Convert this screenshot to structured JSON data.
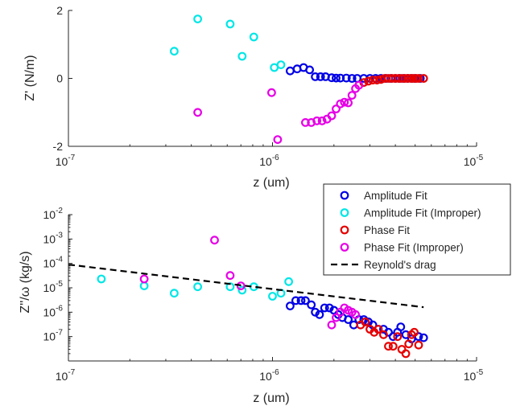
{
  "chart_data": [
    {
      "type": "scatter",
      "xscale": "log",
      "yscale": "linear",
      "xlim": [
        1e-07,
        1e-05
      ],
      "ylim": [
        -2,
        2
      ],
      "xlabel": "z (um)",
      "ylabel": "Z' (N/m)",
      "xticks": [
        {
          "value": 1e-07,
          "base": "10",
          "exp": "-7"
        },
        {
          "value": 1e-06,
          "base": "10",
          "exp": "-6"
        },
        {
          "value": 1e-05,
          "base": "10",
          "exp": "-5"
        }
      ],
      "yticks": [
        {
          "value": 2,
          "label": "2"
        },
        {
          "value": 0,
          "label": "0"
        },
        {
          "value": -2,
          "label": "-2"
        }
      ],
      "series": [
        {
          "name": "Amplitude Fit",
          "color": "#0000e6",
          "marker": "circle",
          "points": [
            [
              1.22e-06,
              0.22
            ],
            [
              1.32e-06,
              0.28
            ],
            [
              1.42e-06,
              0.32
            ],
            [
              1.52e-06,
              0.25
            ],
            [
              1.62e-06,
              0.05
            ],
            [
              1.72e-06,
              0.05
            ],
            [
              1.82e-06,
              0.05
            ],
            [
              1.95e-06,
              0.02
            ],
            [
              2.05e-06,
              0.01
            ],
            [
              2.15e-06,
              0.01
            ],
            [
              2.3e-06,
              0.01
            ],
            [
              2.45e-06,
              0.0
            ],
            [
              2.6e-06,
              0.0
            ],
            [
              2.8e-06,
              0.0
            ],
            [
              3e-06,
              0.0
            ],
            [
              3.2e-06,
              0.0
            ],
            [
              3.4e-06,
              0.0
            ],
            [
              3.6e-06,
              0.0
            ],
            [
              3.8e-06,
              0.0
            ],
            [
              4e-06,
              0.0
            ],
            [
              4.2e-06,
              0.0
            ],
            [
              4.4e-06,
              0.0
            ],
            [
              4.6e-06,
              0.0
            ],
            [
              4.8e-06,
              0.0
            ],
            [
              5e-06,
              0.0
            ],
            [
              5.3e-06,
              0.0
            ]
          ]
        },
        {
          "name": "Amplitude Fit (Improper)",
          "color": "#00e6e6",
          "marker": "circle",
          "points": [
            [
              3.3e-07,
              0.8
            ],
            [
              4.3e-07,
              1.75
            ],
            [
              6.2e-07,
              1.6
            ],
            [
              7.1e-07,
              0.65
            ],
            [
              8.1e-07,
              1.22
            ],
            [
              1.02e-06,
              0.32
            ],
            [
              1.1e-06,
              0.4
            ]
          ]
        },
        {
          "name": "Phase Fit",
          "color": "#e60000",
          "marker": "circle",
          "points": [
            [
              2.8e-06,
              -0.12
            ],
            [
              2.95e-06,
              -0.08
            ],
            [
              3.1e-06,
              -0.05
            ],
            [
              3.25e-06,
              -0.05
            ],
            [
              3.4e-06,
              -0.03
            ],
            [
              3.55e-06,
              0.0
            ],
            [
              3.7e-06,
              0.0
            ],
            [
              3.85e-06,
              0.0
            ],
            [
              4e-06,
              0.0
            ],
            [
              4.15e-06,
              0.0
            ],
            [
              4.3e-06,
              0.0
            ],
            [
              4.45e-06,
              0.0
            ],
            [
              4.6e-06,
              0.0
            ],
            [
              4.75e-06,
              0.0
            ],
            [
              4.9e-06,
              0.0
            ],
            [
              5.05e-06,
              0.0
            ],
            [
              5.2e-06,
              0.0
            ],
            [
              5.5e-06,
              0.0
            ]
          ]
        },
        {
          "name": "Phase Fit (Improper)",
          "color": "#e600e6",
          "marker": "circle",
          "points": [
            [
              4.3e-07,
              -1.0
            ],
            [
              9.9e-07,
              -0.42
            ],
            [
              1.06e-06,
              -1.8
            ],
            [
              1.45e-06,
              -1.3
            ],
            [
              1.55e-06,
              -1.3
            ],
            [
              1.65e-06,
              -1.25
            ],
            [
              1.75e-06,
              -1.25
            ],
            [
              1.85e-06,
              -1.2
            ],
            [
              1.95e-06,
              -1.1
            ],
            [
              2.05e-06,
              -0.9
            ],
            [
              2.15e-06,
              -0.75
            ],
            [
              2.25e-06,
              -0.7
            ],
            [
              2.35e-06,
              -0.72
            ],
            [
              2.45e-06,
              -0.5
            ],
            [
              2.55e-06,
              -0.3
            ],
            [
              2.65e-06,
              -0.2
            ]
          ]
        }
      ]
    },
    {
      "type": "scatter",
      "xscale": "log",
      "yscale": "log",
      "xlim": [
        1e-07,
        1e-05
      ],
      "ylim": [
        1e-08,
        0.01
      ],
      "xlabel": "z (um)",
      "ylabel": "Z''/ω (kg/s)",
      "xticks": [
        {
          "value": 1e-07,
          "base": "10",
          "exp": "-7"
        },
        {
          "value": 1e-06,
          "base": "10",
          "exp": "-6"
        },
        {
          "value": 1e-05,
          "base": "10",
          "exp": "-5"
        }
      ],
      "yticks": [
        {
          "value": 0.01,
          "base": "10",
          "exp": "-2"
        },
        {
          "value": 0.001,
          "base": "10",
          "exp": "-3"
        },
        {
          "value": 0.0001,
          "base": "10",
          "exp": "-4"
        },
        {
          "value": 1e-05,
          "base": "10",
          "exp": "-5"
        },
        {
          "value": 1e-06,
          "base": "10",
          "exp": "-6"
        },
        {
          "value": 1e-07,
          "base": "10",
          "exp": "-7"
        }
      ],
      "series": [
        {
          "name": "Amplitude Fit",
          "color": "#0000e6",
          "marker": "circle",
          "points": [
            [
              1.22e-06,
              1.8e-06
            ],
            [
              1.3e-06,
              3e-06
            ],
            [
              1.38e-06,
              3e-06
            ],
            [
              1.45e-06,
              3e-06
            ],
            [
              1.55e-06,
              2e-06
            ],
            [
              1.62e-06,
              1e-06
            ],
            [
              1.7e-06,
              8e-07
            ],
            [
              1.8e-06,
              1.5e-06
            ],
            [
              1.9e-06,
              1.5e-06
            ],
            [
              2e-06,
              1.2e-06
            ],
            [
              2.1e-06,
              8e-07
            ],
            [
              2.2e-06,
              6e-07
            ],
            [
              2.35e-06,
              5e-07
            ],
            [
              2.5e-06,
              3e-07
            ],
            [
              2.65e-06,
              5e-07
            ],
            [
              2.8e-06,
              5e-07
            ],
            [
              2.95e-06,
              4e-07
            ],
            [
              3.1e-06,
              3e-07
            ],
            [
              3.3e-06,
              2e-07
            ],
            [
              3.5e-06,
              2e-07
            ],
            [
              3.7e-06,
              1.5e-07
            ],
            [
              3.9e-06,
              1e-07
            ],
            [
              4.1e-06,
              1.5e-07
            ],
            [
              4.25e-06,
              2.5e-07
            ],
            [
              4.5e-06,
              1.2e-07
            ],
            [
              4.8e-06,
              8e-08
            ],
            [
              5.2e-06,
              1e-07
            ],
            [
              5.5e-06,
              9e-08
            ]
          ]
        },
        {
          "name": "Amplitude Fit (Improper)",
          "color": "#00e6e6",
          "marker": "circle",
          "points": [
            [
              1.45e-07,
              2.3e-05
            ],
            [
              2.35e-07,
              1.2e-05
            ],
            [
              3.3e-07,
              6e-06
            ],
            [
              4.3e-07,
              1.1e-05
            ],
            [
              6.2e-07,
              1.1e-05
            ],
            [
              7.1e-07,
              8e-06
            ],
            [
              8.1e-07,
              1.1e-05
            ],
            [
              1e-06,
              4.5e-06
            ],
            [
              1.1e-06,
              6e-06
            ],
            [
              1.2e-06,
              1.8e-05
            ]
          ]
        },
        {
          "name": "Phase Fit",
          "color": "#e60000",
          "marker": "circle",
          "points": [
            [
              2.7e-06,
              3e-07
            ],
            [
              2.85e-06,
              4e-07
            ],
            [
              3e-06,
              2e-07
            ],
            [
              3.15e-06,
              1.5e-07
            ],
            [
              3.3e-06,
              2e-07
            ],
            [
              3.5e-06,
              1.2e-07
            ],
            [
              3.7e-06,
              4e-08
            ],
            [
              3.9e-06,
              4e-08
            ],
            [
              4.1e-06,
              1e-07
            ],
            [
              4.3e-06,
              3e-08
            ],
            [
              4.5e-06,
              2e-08
            ],
            [
              4.65e-06,
              5e-08
            ],
            [
              4.8e-06,
              1.2e-07
            ],
            [
              4.95e-06,
              1.5e-07
            ],
            [
              5.2e-06,
              4.5e-08
            ]
          ]
        },
        {
          "name": "Phase Fit (Improper)",
          "color": "#e600e6",
          "marker": "circle",
          "points": [
            [
              2.35e-07,
              2.3e-05
            ],
            [
              5.2e-07,
              0.0009
            ],
            [
              6.2e-07,
              3.2e-05
            ],
            [
              7e-07,
              1.2e-05
            ],
            [
              1.95e-06,
              3e-07
            ],
            [
              2.05e-06,
              6e-07
            ],
            [
              2.15e-06,
              1e-06
            ],
            [
              2.25e-06,
              1.5e-06
            ],
            [
              2.35e-06,
              1.2e-06
            ],
            [
              2.45e-06,
              1e-06
            ],
            [
              2.55e-06,
              8e-07
            ]
          ]
        },
        {
          "name": "Reynold's drag",
          "color": "#000000",
          "marker": "none",
          "line": "dashed",
          "points": [
            [
              1e-07,
              9e-05
            ],
            [
              5.5e-06,
              1.6e-06
            ]
          ]
        }
      ],
      "legend": {
        "placement": "top-right, outside the lower axes",
        "entries": [
          {
            "label": "Amplitude Fit",
            "color": "#0000e6",
            "symbol": "circle"
          },
          {
            "label": "Amplitude Fit (Improper)",
            "color": "#00e6e6",
            "symbol": "circle"
          },
          {
            "label": "Phase Fit",
            "color": "#e60000",
            "symbol": "circle"
          },
          {
            "label": "Phase Fit (Improper)",
            "color": "#e600e6",
            "symbol": "circle"
          },
          {
            "label": "Reynold's drag",
            "color": "#000000",
            "symbol": "dashed-line"
          }
        ]
      }
    }
  ]
}
